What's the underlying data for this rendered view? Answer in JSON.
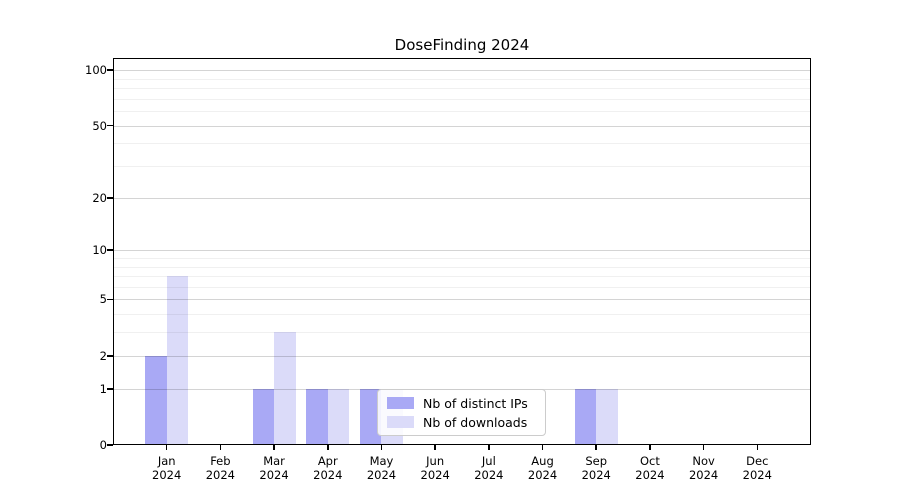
{
  "chart_data": {
    "type": "bar",
    "title": "DoseFinding 2024",
    "x_categories": [
      "Jan 2024",
      "Feb 2024",
      "Mar 2024",
      "Apr 2024",
      "May 2024",
      "Jun 2024",
      "Jul 2024",
      "Aug 2024",
      "Sep 2024",
      "Oct 2024",
      "Nov 2024",
      "Dec 2024"
    ],
    "series": [
      {
        "name": "Nb of distinct IPs",
        "color": "#A9A9F5",
        "values": [
          2,
          0,
          1,
          1,
          1,
          0,
          0,
          0,
          1,
          0,
          0,
          0
        ]
      },
      {
        "name": "Nb of downloads",
        "color": "#DBDBF9",
        "values": [
          7,
          0,
          3,
          1,
          1,
          0,
          0,
          0,
          1,
          0,
          0,
          0
        ]
      }
    ],
    "y_axis": {
      "scale": "log1p",
      "ticks": [
        0,
        1,
        2,
        5,
        10,
        20,
        50,
        100
      ],
      "minor_ticks": [
        3,
        4,
        6,
        7,
        8,
        9,
        30,
        40,
        60,
        70,
        80,
        90
      ],
      "range": [
        0,
        116
      ]
    },
    "x_axis": {
      "tick_label_lines": 2
    },
    "legend": {
      "location": "inside-bottom-center",
      "entries": [
        "Nb of distinct IPs",
        "Nb of downloads"
      ]
    },
    "grid": "horizontal-major-minor",
    "background_color": "#ffffff"
  }
}
